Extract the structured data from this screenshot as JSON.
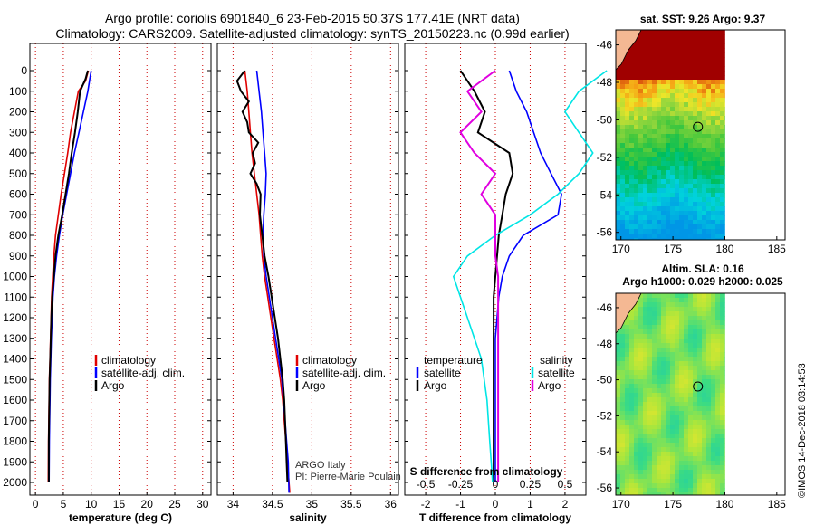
{
  "title_line1": "Argo profile: coriolis 6901840_6 23-Feb-2015 50.37S 177.41E (NRT data)",
  "title_line2": "Climatology: CARS2009. Satellite-adjusted climatology: synTS_20150223.nc (0.99d earlier)",
  "depth_ticks": [
    "0",
    "100",
    "200",
    "300",
    "400",
    "500",
    "600",
    "700",
    "800",
    "900",
    "1000",
    "1100",
    "1200",
    "1300",
    "1400",
    "1500",
    "1600",
    "1700",
    "1800",
    "1900",
    "2000"
  ],
  "credit": {
    "line1": "ARGO Italy",
    "line2": "PI: Pierre-Marie Poulain"
  },
  "timestamp": "©IMOS 14-Dec-2018 03:14:53",
  "colors": {
    "climatology": "#e00000",
    "satellite": "#0000ff",
    "argo": "#000000",
    "temp_diff": "#00e5e5",
    "sal_diff": "#e000e0",
    "land": "#f4b893"
  },
  "chart_data": [
    {
      "type": "line",
      "id": "temperature",
      "xlabel": "temperature (deg C)",
      "xlim": [
        -1,
        31.5
      ],
      "ylim": [
        0,
        2050
      ],
      "xticks": [
        0,
        5,
        10,
        15,
        20,
        25,
        30
      ],
      "xtick_labels": [
        "0",
        "5",
        "10",
        "15",
        "20",
        "25",
        "30"
      ],
      "legend": [
        "climatology",
        "satellite-adj. clim.",
        "Argo"
      ],
      "series": [
        {
          "name": "climatology",
          "color": "#e00000",
          "x": [
            9.5,
            9.0,
            7.7,
            7.0,
            6.3,
            5.8,
            5.2,
            4.6,
            4.1,
            3.6,
            3.3,
            3.1,
            2.9,
            2.8,
            2.7,
            2.6,
            2.5,
            2.45,
            2.4,
            2.35,
            2.3
          ],
          "y": [
            0,
            50,
            100,
            200,
            300,
            400,
            500,
            600,
            700,
            800,
            900,
            1000,
            1100,
            1200,
            1300,
            1400,
            1500,
            1600,
            1700,
            1800,
            2000
          ]
        },
        {
          "name": "satellite-adj. clim.",
          "color": "#0000ff",
          "x": [
            10.0,
            9.7,
            9.4,
            8.6,
            7.8,
            7.0,
            6.3,
            5.6,
            4.9,
            4.3,
            3.8,
            3.4,
            3.15,
            3.0,
            2.85,
            2.75,
            2.65,
            2.6,
            2.55,
            2.5,
            2.45
          ],
          "y": [
            0,
            50,
            100,
            200,
            300,
            400,
            500,
            600,
            700,
            800,
            900,
            1000,
            1100,
            1200,
            1300,
            1400,
            1500,
            1600,
            1700,
            1800,
            2000
          ]
        },
        {
          "name": "Argo",
          "color": "#000000",
          "x": [
            9.4,
            9.0,
            8.0,
            7.6,
            7.1,
            6.5,
            6.0,
            5.4,
            4.8,
            4.1,
            3.6,
            3.3,
            3.0,
            2.85,
            2.75,
            2.65,
            2.55,
            2.5,
            2.45,
            2.4,
            2.4
          ],
          "y": [
            0,
            40,
            100,
            200,
            300,
            400,
            500,
            600,
            700,
            800,
            900,
            1000,
            1100,
            1200,
            1300,
            1400,
            1500,
            1600,
            1700,
            1800,
            2000
          ]
        }
      ]
    },
    {
      "type": "line",
      "id": "salinity",
      "xlabel": "salinity",
      "xlim": [
        33.8,
        36.1
      ],
      "ylim": [
        0,
        2050
      ],
      "xticks": [
        34,
        34.5,
        35,
        35.5,
        36
      ],
      "xtick_labels": [
        "34",
        "34.5",
        "35",
        "35.5",
        "36"
      ],
      "legend": [
        "climatology",
        "satellite-adj. clim.",
        "Argo"
      ],
      "series": [
        {
          "name": "climatology",
          "color": "#e00000",
          "x": [
            34.15,
            34.18,
            34.2,
            34.22,
            34.24,
            34.27,
            34.3,
            34.33,
            34.35,
            34.37,
            34.4,
            34.44,
            34.48,
            34.52,
            34.56,
            34.6,
            34.63,
            34.65,
            34.67,
            34.69,
            34.72
          ],
          "y": [
            0,
            100,
            200,
            300,
            400,
            500,
            600,
            700,
            800,
            900,
            1000,
            1100,
            1200,
            1300,
            1400,
            1500,
            1600,
            1700,
            1800,
            1900,
            2050
          ]
        },
        {
          "name": "satellite-adj. clim.",
          "color": "#0000ff",
          "x": [
            34.3,
            34.33,
            34.36,
            34.38,
            34.4,
            34.42,
            34.41,
            34.39,
            34.38,
            34.39,
            34.42,
            34.46,
            34.5,
            34.54,
            34.58,
            34.62,
            34.64,
            34.66,
            34.68,
            34.7,
            34.71
          ],
          "y": [
            0,
            100,
            200,
            300,
            400,
            500,
            600,
            700,
            800,
            900,
            1000,
            1100,
            1200,
            1300,
            1400,
            1500,
            1600,
            1700,
            1800,
            1900,
            2050
          ]
        },
        {
          "name": "Argo",
          "color": "#000000",
          "x": [
            34.15,
            34.05,
            34.1,
            34.2,
            34.12,
            34.18,
            34.2,
            34.32,
            34.25,
            34.28,
            34.22,
            34.3,
            34.35,
            34.34,
            34.37,
            34.4,
            34.45,
            34.49,
            34.53,
            34.57,
            34.6,
            34.63,
            34.65,
            34.66,
            34.67,
            34.68,
            34.69
          ],
          "y": [
            0,
            50,
            100,
            150,
            200,
            250,
            300,
            350,
            400,
            450,
            500,
            550,
            600,
            700,
            800,
            900,
            1000,
            1100,
            1200,
            1300,
            1400,
            1500,
            1600,
            1700,
            1800,
            1900,
            2000
          ]
        }
      ]
    },
    {
      "type": "line",
      "id": "difference",
      "xlabel": "T difference from climatology",
      "xlabel_top": "S difference from climatology",
      "xlim": [
        -2.6,
        2.6
      ],
      "ylim": [
        0,
        2050
      ],
      "xticks": [
        -2,
        -1,
        0,
        1,
        2
      ],
      "xtick_labels": [
        "-2",
        "-1",
        "0",
        "1",
        "2"
      ],
      "s_ticks_labels": [
        "-0.5",
        "-0.25",
        "0",
        "0.25",
        "0.5"
      ],
      "s_ticks": [
        -0.5,
        -0.25,
        0,
        0.25,
        0.5
      ],
      "legend_titles": [
        "temperature",
        "salinity"
      ],
      "legend_left": [
        "satellite",
        "Argo"
      ],
      "legend_right": [
        "satellite",
        "Argo"
      ],
      "series": [
        {
          "name": "T satellite",
          "color": "#0000ff",
          "x": [
            0.4,
            0.6,
            0.9,
            1.1,
            1.3,
            1.6,
            1.9,
            1.8,
            0.8,
            0.4,
            0.2,
            0.1,
            0.05,
            0.0,
            0.0,
            0.0,
            0.0,
            0.0,
            0.0,
            0.0,
            0.0
          ],
          "y": [
            0,
            100,
            200,
            300,
            400,
            500,
            600,
            700,
            800,
            900,
            1000,
            1100,
            1200,
            1300,
            1400,
            1500,
            1600,
            1700,
            1800,
            1900,
            2000
          ]
        },
        {
          "name": "T Argo",
          "color": "#000000",
          "x": [
            -1.0,
            -0.6,
            -0.3,
            -0.5,
            0.4,
            0.5,
            0.3,
            0.2,
            0.1,
            0.05,
            0.0,
            -0.05,
            -0.05,
            -0.05,
            -0.05,
            -0.05,
            -0.05,
            -0.05,
            -0.05,
            -0.05,
            -0.05
          ],
          "y": [
            0,
            100,
            200,
            300,
            400,
            500,
            600,
            700,
            800,
            900,
            1000,
            1100,
            1200,
            1300,
            1400,
            1500,
            1600,
            1700,
            1800,
            1900,
            2000
          ]
        },
        {
          "name": "S satellite",
          "color": "#00e5e5",
          "x": [
            0.8,
            0.6,
            0.5,
            0.6,
            0.7,
            0.6,
            0.45,
            0.25,
            0.0,
            -0.2,
            -0.3,
            -0.25,
            -0.2,
            -0.15,
            -0.1,
            -0.08,
            -0.06,
            -0.05,
            -0.04,
            -0.03,
            -0.02
          ],
          "y": [
            0,
            100,
            200,
            300,
            400,
            500,
            600,
            700,
            800,
            900,
            1000,
            1100,
            1200,
            1300,
            1400,
            1500,
            1600,
            1700,
            1800,
            1900,
            2000
          ]
        },
        {
          "name": "S Argo",
          "color": "#e000e0",
          "x": [
            0.0,
            -0.2,
            -0.1,
            -0.25,
            -0.15,
            0.0,
            -0.1,
            0.0,
            0.0,
            0.0,
            0.02,
            0.02,
            0.02,
            0.02,
            0.02,
            0.02,
            0.02,
            0.02,
            0.02,
            0.02,
            0.02
          ],
          "y": [
            0,
            100,
            200,
            300,
            400,
            500,
            600,
            700,
            800,
            900,
            1000,
            1100,
            1200,
            1300,
            1400,
            1500,
            1600,
            1700,
            1800,
            1900,
            2000
          ]
        }
      ]
    },
    {
      "type": "heatmap",
      "id": "sst_map",
      "title": "sat. SST: 9.26 Argo: 9.37",
      "xlim": [
        169.5,
        185.8
      ],
      "ylim": [
        -56.4,
        -45.2
      ],
      "xticks": [
        170,
        175,
        180,
        185
      ],
      "xtick_labels": [
        "170",
        "175",
        "180",
        "185"
      ],
      "yticks": [
        -46,
        -48,
        -50,
        -52,
        -54,
        -56
      ],
      "ytick_labels": [
        "-46",
        "-48",
        "-50",
        "-52",
        "-54",
        "-56"
      ],
      "float_position": [
        177.41,
        -50.37
      ]
    },
    {
      "type": "heatmap",
      "id": "sla_map",
      "title_line1": "Altim. SLA: 0.16",
      "title_line2": "Argo h1000: 0.029 h2000: 0.025",
      "xlim": [
        169.5,
        185.8
      ],
      "ylim": [
        -56.4,
        -45.2
      ],
      "xticks": [
        170,
        175,
        180,
        185
      ],
      "xtick_labels": [
        "170",
        "175",
        "180",
        "185"
      ],
      "yticks": [
        -46,
        -48,
        -50,
        -52,
        -54,
        -56
      ],
      "ytick_labels": [
        "-46",
        "-48",
        "-50",
        "-52",
        "-54",
        "-56"
      ],
      "float_position": [
        177.41,
        -50.37
      ]
    }
  ]
}
